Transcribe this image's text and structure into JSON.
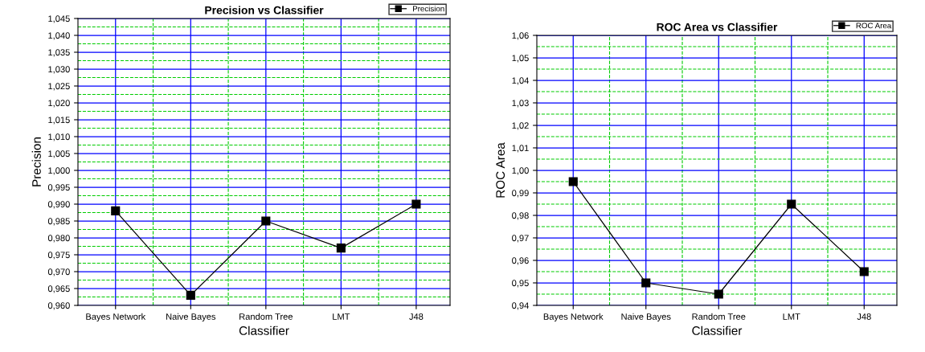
{
  "chart_data": [
    {
      "type": "line",
      "title": "Precision vs Classifier",
      "xlabel": "Classifier",
      "ylabel": "Precision",
      "categories": [
        "Bayes Network",
        "Naive Bayes",
        "Random Tree",
        "LMT",
        "J48"
      ],
      "series": [
        {
          "name": "Precision",
          "color": "#000000",
          "values": [
            0.988,
            0.963,
            0.985,
            0.977,
            0.99
          ]
        }
      ],
      "ylim": [
        0.96,
        1.045
      ],
      "yticks": [
        {
          "value": 0.96,
          "label": "0,960"
        },
        {
          "value": 0.965,
          "label": "0,965"
        },
        {
          "value": 0.97,
          "label": "0,970"
        },
        {
          "value": 0.975,
          "label": "0,975"
        },
        {
          "value": 0.98,
          "label": "0,980"
        },
        {
          "value": 0.985,
          "label": "0,985"
        },
        {
          "value": 0.99,
          "label": "0,990"
        },
        {
          "value": 0.995,
          "label": "0,995"
        },
        {
          "value": 1.0,
          "label": "1,000"
        },
        {
          "value": 1.005,
          "label": "1,005"
        },
        {
          "value": 1.01,
          "label": "1,010"
        },
        {
          "value": 1.015,
          "label": "1,015"
        },
        {
          "value": 1.02,
          "label": "1,020"
        },
        {
          "value": 1.025,
          "label": "1,025"
        },
        {
          "value": 1.03,
          "label": "1,030"
        },
        {
          "value": 1.035,
          "label": "1,035"
        },
        {
          "value": 1.04,
          "label": "1,040"
        },
        {
          "value": 1.045,
          "label": "1,045"
        }
      ],
      "grid": true,
      "legend": "top right",
      "marker": "square",
      "line_style": "solid"
    },
    {
      "type": "line",
      "title": "ROC Area vs Classifier",
      "xlabel": "Classifier",
      "ylabel": "ROC Area",
      "categories": [
        "Bayes Network",
        "Naive Bayes",
        "Random Tree",
        "LMT",
        "J48"
      ],
      "series": [
        {
          "name": "ROC Area",
          "color": "#000000",
          "values": [
            0.995,
            0.95,
            0.945,
            0.985,
            0.955
          ]
        }
      ],
      "ylim": [
        0.94,
        1.06
      ],
      "yticks": [
        {
          "value": 0.94,
          "label": "0,94"
        },
        {
          "value": 0.95,
          "label": "0,95"
        },
        {
          "value": 0.96,
          "label": "0,96"
        },
        {
          "value": 0.97,
          "label": "0,97"
        },
        {
          "value": 0.98,
          "label": "0,98"
        },
        {
          "value": 0.99,
          "label": "0,99"
        },
        {
          "value": 1.0,
          "label": "1,00"
        },
        {
          "value": 1.01,
          "label": "1,01"
        },
        {
          "value": 1.02,
          "label": "1,02"
        },
        {
          "value": 1.03,
          "label": "1,03"
        },
        {
          "value": 1.04,
          "label": "1,04"
        },
        {
          "value": 1.05,
          "label": "1,05"
        },
        {
          "value": 1.06,
          "label": "1,06"
        }
      ],
      "grid": true,
      "legend": "top right",
      "marker": "square",
      "line_style": "solid"
    }
  ]
}
